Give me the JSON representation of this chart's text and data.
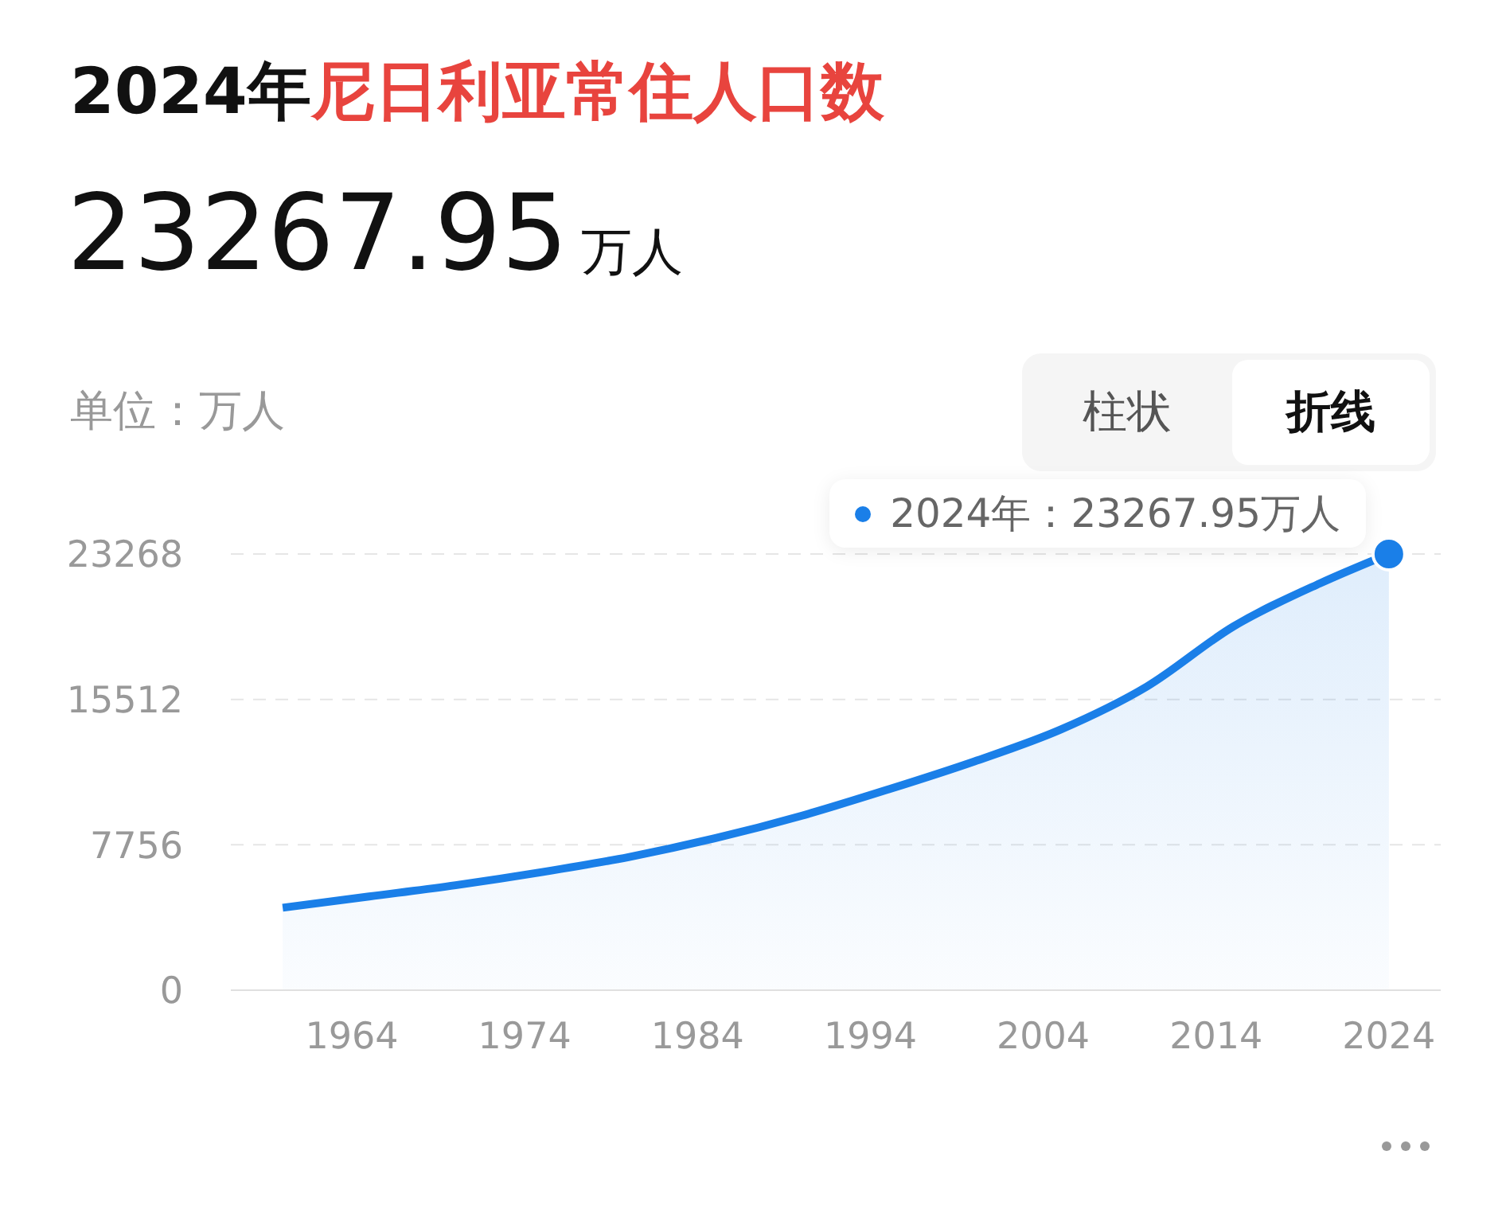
{
  "chart_data": {
    "type": "area",
    "title": "2024年尼日利亚常住人口数",
    "subtitle": "23267.95万人",
    "ylabel": "单位：万人",
    "annotations": [
      "柱状",
      "折线",
      {
        "text": "2024年：23267.95万人",
        "x": 2024,
        "y": 23267.95
      }
    ],
    "x": [
      1960,
      1965,
      1970,
      1975,
      1980,
      1985,
      1990,
      1995,
      2000,
      2005,
      2010,
      2015,
      2020,
      2024
    ],
    "series": [
      {
        "color": "#1a7fe8",
        "values": [
          4400,
          5000,
          5600,
          6300,
          7100,
          8100,
          9300,
          10700,
          12200,
          13900,
          16200,
          19400,
          21700,
          23267.95
        ]
      }
    ],
    "xlim": [
      1957,
      2027
    ],
    "xticks": [
      1964,
      1974,
      1984,
      1994,
      2004,
      2014,
      2024
    ],
    "ylim": [
      0,
      23268
    ],
    "yticks": [
      0,
      7756,
      15512,
      23268
    ],
    "grid": "y",
    "marker": "none"
  }
}
